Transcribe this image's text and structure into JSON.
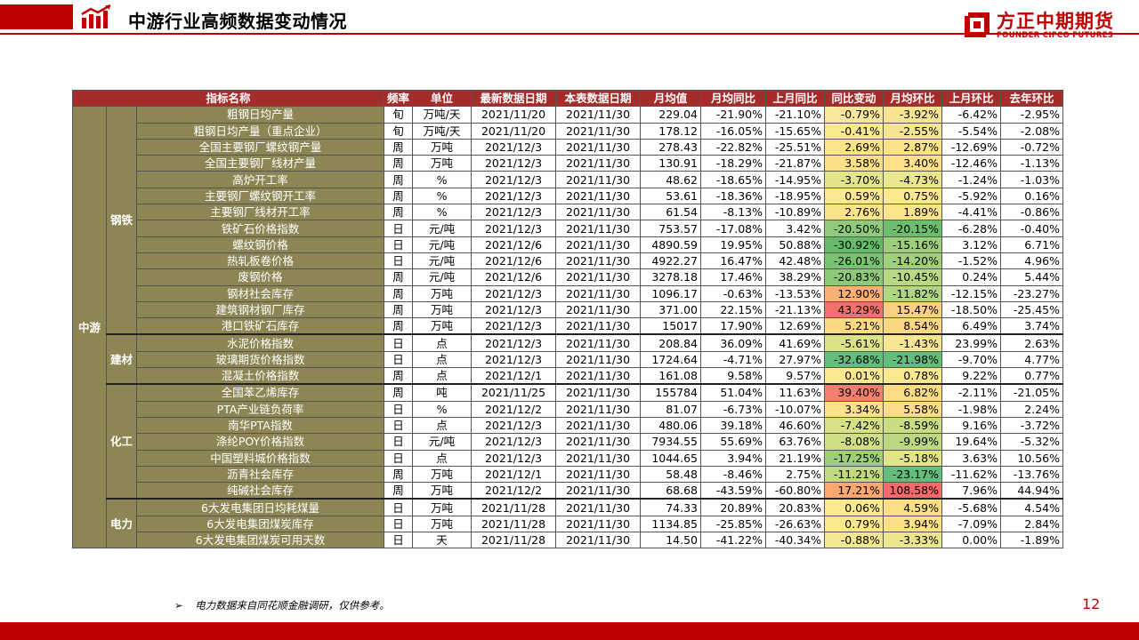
{
  "header": {
    "title": "中游行业高频数据变动情况",
    "logo_name": "方正中期期货",
    "logo_sub": "FOUNDER CIFCO FUTURES",
    "brand_color": "#c00000"
  },
  "table": {
    "columns": [
      "指标名称",
      "频率",
      "单位",
      "最新数据日期",
      "本表数据日期",
      "月均值",
      "月均同比",
      "上月同比",
      "同比变动",
      "月均环比",
      "上月环比",
      "去年环比"
    ],
    "category": "中游",
    "groups": [
      {
        "name": "钢铁",
        "rows": [
          {
            "name": "粗钢日均产量",
            "freq": "旬",
            "unit": "万吨/天",
            "latest": "2021/11/20",
            "table": "2021/11/30",
            "avg": "229.04",
            "yoy": "-21.90%",
            "last_yoy": "-21.10%",
            "yoy_chg": "-0.79%",
            "mom": "-3.92%",
            "last_mom": "-6.42%",
            "ly_mom": "-2.95%",
            "c1": "#f6e79a",
            "c2": "#f7e493"
          },
          {
            "name": "粗钢日均产量（重点企业）",
            "freq": "旬",
            "unit": "万吨/天",
            "latest": "2021/11/20",
            "table": "2021/11/30",
            "avg": "178.12",
            "yoy": "-16.05%",
            "last_yoy": "-15.65%",
            "yoy_chg": "-0.41%",
            "mom": "-2.55%",
            "last_mom": "-5.54%",
            "ly_mom": "-2.08%",
            "c1": "#f8e98f",
            "c2": "#f5e592"
          },
          {
            "name": "全国主要钢厂螺纹钢产量",
            "freq": "周",
            "unit": "万吨",
            "latest": "2021/12/3",
            "table": "2021/11/30",
            "avg": "278.43",
            "yoy": "-22.82%",
            "last_yoy": "-25.51%",
            "yoy_chg": "2.69%",
            "mom": "2.87%",
            "last_mom": "-12.69%",
            "ly_mom": "-0.72%",
            "c1": "#fbe48a",
            "c2": "#fde28a"
          },
          {
            "name": "全国主要钢厂线材产量",
            "freq": "周",
            "unit": "万吨",
            "latest": "2021/12/3",
            "table": "2021/11/30",
            "avg": "130.91",
            "yoy": "-18.29%",
            "last_yoy": "-21.87%",
            "yoy_chg": "3.58%",
            "mom": "3.40%",
            "last_mom": "-12.46%",
            "ly_mom": "-1.13%",
            "c1": "#fbe088",
            "c2": "#fde088"
          },
          {
            "name": "高炉开工率",
            "freq": "周",
            "unit": "%",
            "latest": "2021/12/3",
            "table": "2021/11/30",
            "avg": "48.62",
            "yoy": "-18.65%",
            "last_yoy": "-14.95%",
            "yoy_chg": "-3.70%",
            "mom": "-4.73%",
            "last_mom": "-1.24%",
            "ly_mom": "-1.03%",
            "c1": "#e6e48a",
            "c2": "#eae68e"
          },
          {
            "name": "主要钢厂螺纹钢开工率",
            "freq": "周",
            "unit": "%",
            "latest": "2021/12/3",
            "table": "2021/11/30",
            "avg": "53.61",
            "yoy": "-18.36%",
            "last_yoy": "-18.95%",
            "yoy_chg": "0.59%",
            "mom": "0.75%",
            "last_mom": "-5.92%",
            "ly_mom": "0.16%",
            "c1": "#fae790",
            "c2": "#fbe78e"
          },
          {
            "name": "主要钢厂线材开工率",
            "freq": "周",
            "unit": "%",
            "latest": "2021/12/3",
            "table": "2021/11/30",
            "avg": "61.54",
            "yoy": "-8.13%",
            "last_yoy": "-10.89%",
            "yoy_chg": "2.76%",
            "mom": "1.89%",
            "last_mom": "-4.41%",
            "ly_mom": "-0.86%",
            "c1": "#fbe38a",
            "c2": "#fce48c"
          },
          {
            "name": "铁矿石价格指数",
            "freq": "日",
            "unit": "元/吨",
            "latest": "2021/12/3",
            "table": "2021/11/30",
            "avg": "753.57",
            "yoy": "-17.08%",
            "last_yoy": "3.42%",
            "yoy_chg": "-20.50%",
            "mom": "-20.15%",
            "last_mom": "-6.28%",
            "ly_mom": "-0.40%",
            "c1": "#8fca7c",
            "c2": "#6cbe6e"
          },
          {
            "name": "螺纹钢价格",
            "freq": "日",
            "unit": "元/吨",
            "latest": "2021/12/6",
            "table": "2021/11/30",
            "avg": "4890.59",
            "yoy": "19.95%",
            "last_yoy": "50.88%",
            "yoy_chg": "-30.92%",
            "mom": "-15.16%",
            "last_mom": "3.12%",
            "ly_mom": "6.71%",
            "c1": "#66bb6a",
            "c2": "#9cce7c"
          },
          {
            "name": "热轧板卷价格",
            "freq": "日",
            "unit": "元/吨",
            "latest": "2021/12/6",
            "table": "2021/11/30",
            "avg": "4922.27",
            "yoy": "16.47%",
            "last_yoy": "42.48%",
            "yoy_chg": "-26.01%",
            "mom": "-14.20%",
            "last_mom": "-1.52%",
            "ly_mom": "4.96%",
            "c1": "#78c271",
            "c2": "#a1d07c"
          },
          {
            "name": "废钢价格",
            "freq": "周",
            "unit": "元/吨",
            "latest": "2021/12/6",
            "table": "2021/11/30",
            "avg": "3278.18",
            "yoy": "17.46%",
            "last_yoy": "38.29%",
            "yoy_chg": "-20.83%",
            "mom": "-10.45%",
            "last_mom": "0.24%",
            "ly_mom": "5.44%",
            "c1": "#8ec97a",
            "c2": "#b8d882"
          },
          {
            "name": "钢材社会库存",
            "freq": "周",
            "unit": "万吨",
            "latest": "2021/12/3",
            "table": "2021/11/30",
            "avg": "1096.17",
            "yoy": "-0.63%",
            "last_yoy": "-13.53%",
            "yoy_chg": "12.90%",
            "mom": "-11.82%",
            "last_mom": "-12.15%",
            "ly_mom": "-23.27%",
            "c1": "#f9b071",
            "c2": "#b0d680"
          },
          {
            "name": "建筑钢材钢厂库存",
            "freq": "周",
            "unit": "万吨",
            "latest": "2021/12/3",
            "table": "2021/11/30",
            "avg": "371.00",
            "yoy": "22.15%",
            "last_yoy": "-21.13%",
            "yoy_chg": "43.29%",
            "mom": "15.47%",
            "last_mom": "-18.50%",
            "ly_mom": "-25.45%",
            "c1": "#f4716b",
            "c2": "#fbcf80"
          },
          {
            "name": "港口铁矿石库存",
            "freq": "周",
            "unit": "万吨",
            "latest": "2021/12/3",
            "table": "2021/11/30",
            "avg": "15017",
            "yoy": "17.90%",
            "last_yoy": "12.69%",
            "yoy_chg": "5.21%",
            "mom": "8.54%",
            "last_mom": "6.49%",
            "ly_mom": "3.74%",
            "c1": "#fcd983",
            "c2": "#fcd782"
          }
        ]
      },
      {
        "name": "建材",
        "rows": [
          {
            "name": "水泥价格指数",
            "freq": "日",
            "unit": "点",
            "latest": "2021/12/3",
            "table": "2021/11/30",
            "avg": "208.84",
            "yoy": "36.09%",
            "last_yoy": "41.69%",
            "yoy_chg": "-5.61%",
            "mom": "-1.43%",
            "last_mom": "23.99%",
            "ly_mom": "2.63%",
            "c1": "#dde288",
            "c2": "#f5e692"
          },
          {
            "name": "玻璃期货价格指数",
            "freq": "日",
            "unit": "点",
            "latest": "2021/12/3",
            "table": "2021/11/30",
            "avg": "1724.64",
            "yoy": "-4.71%",
            "last_yoy": "27.97%",
            "yoy_chg": "-32.68%",
            "mom": "-21.98%",
            "last_mom": "-9.70%",
            "ly_mom": "4.77%",
            "c1": "#63be7b",
            "c2": "#63be7b"
          },
          {
            "name": "混凝土价格指数",
            "freq": "周",
            "unit": "点",
            "latest": "2021/12/1",
            "table": "2021/11/30",
            "avg": "161.08",
            "yoy": "9.58%",
            "last_yoy": "9.57%",
            "yoy_chg": "0.01%",
            "mom": "0.78%",
            "last_mom": "9.22%",
            "ly_mom": "0.77%",
            "c1": "#fbe890",
            "c2": "#fbe78e"
          }
        ]
      },
      {
        "name": "化工",
        "rows": [
          {
            "name": "全国苯乙烯库存",
            "freq": "周",
            "unit": "吨",
            "latest": "2021/11/25",
            "table": "2021/11/30",
            "avg": "155784",
            "yoy": "51.04%",
            "last_yoy": "11.63%",
            "yoy_chg": "39.40%",
            "mom": "6.82%",
            "last_mom": "-2.11%",
            "ly_mom": "-21.05%",
            "c1": "#f57f6e",
            "c2": "#fcdb84"
          },
          {
            "name": "PTA产业链负荷率",
            "freq": "日",
            "unit": "%",
            "latest": "2021/12/2",
            "table": "2021/11/30",
            "avg": "81.07",
            "yoy": "-6.73%",
            "last_yoy": "-10.07%",
            "yoy_chg": "3.34%",
            "mom": "5.58%",
            "last_mom": "-1.98%",
            "ly_mom": "2.24%",
            "c1": "#fbe189",
            "c2": "#fcdd86"
          },
          {
            "name": "南华PTA指数",
            "freq": "日",
            "unit": "点",
            "latest": "2021/12/3",
            "table": "2021/11/30",
            "avg": "480.06",
            "yoy": "39.18%",
            "last_yoy": "46.60%",
            "yoy_chg": "-7.42%",
            "mom": "-8.59%",
            "last_mom": "9.16%",
            "ly_mom": "-3.72%",
            "c1": "#d6e086",
            "c2": "#c8dc84"
          },
          {
            "name": "涤纶POY价格指数",
            "freq": "日",
            "unit": "元/吨",
            "latest": "2021/12/3",
            "table": "2021/11/30",
            "avg": "7934.55",
            "yoy": "55.69%",
            "last_yoy": "63.76%",
            "yoy_chg": "-8.08%",
            "mom": "-9.99%",
            "last_mom": "19.64%",
            "ly_mom": "-5.32%",
            "c1": "#d2de85",
            "c2": "#bcd982"
          },
          {
            "name": "中国塑料城价格指数",
            "freq": "日",
            "unit": "点",
            "latest": "2021/12/3",
            "table": "2021/11/30",
            "avg": "1044.65",
            "yoy": "3.94%",
            "last_yoy": "21.19%",
            "yoy_chg": "-17.25%",
            "mom": "-5.18%",
            "last_mom": "3.63%",
            "ly_mom": "10.56%",
            "c1": "#9ecd7c",
            "c2": "#e2e38a"
          },
          {
            "name": "沥青社会库存",
            "freq": "周",
            "unit": "万吨",
            "latest": "2021/12/1",
            "table": "2021/11/30",
            "avg": "58.48",
            "yoy": "-8.46%",
            "last_yoy": "2.75%",
            "yoy_chg": "-11.21%",
            "mom": "-23.17%",
            "last_mom": "-11.62%",
            "ly_mom": "-13.76%",
            "c1": "#bfd982",
            "c2": "#63be7b"
          },
          {
            "name": "纯碱社会库存",
            "freq": "周",
            "unit": "万吨",
            "latest": "2021/12/2",
            "table": "2021/11/30",
            "avg": "68.68",
            "yoy": "-43.59%",
            "last_yoy": "-60.80%",
            "yoy_chg": "17.21%",
            "mom": "108.58%",
            "last_mom": "7.96%",
            "ly_mom": "44.94%",
            "c1": "#f9a66f",
            "c2": "#f8696b"
          }
        ]
      },
      {
        "name": "电力",
        "rows": [
          {
            "name": "6大发电集团日均耗煤量",
            "freq": "日",
            "unit": "万吨",
            "latest": "2021/11/28",
            "table": "2021/11/30",
            "avg": "74.33",
            "yoy": "20.89%",
            "last_yoy": "20.83%",
            "yoy_chg": "0.06%",
            "mom": "4.59%",
            "last_mom": "-5.68%",
            "ly_mom": "4.54%",
            "c1": "#fbe88f",
            "c2": "#fcde87"
          },
          {
            "name": "6大发电集团煤炭库存",
            "freq": "日",
            "unit": "万吨",
            "latest": "2021/11/28",
            "table": "2021/11/30",
            "avg": "1134.85",
            "yoy": "-25.85%",
            "last_yoy": "-26.63%",
            "yoy_chg": "0.79%",
            "mom": "3.94%",
            "last_mom": "-7.09%",
            "ly_mom": "2.84%",
            "c1": "#fbe78e",
            "c2": "#fce088"
          },
          {
            "name": "6大发电集团煤炭可用天数",
            "freq": "日",
            "unit": "天",
            "latest": "2021/11/28",
            "table": "2021/11/30",
            "avg": "14.50",
            "yoy": "-41.22%",
            "last_yoy": "-40.34%",
            "yoy_chg": "-0.88%",
            "mom": "-3.33%",
            "last_mom": "0.00%",
            "ly_mom": "-1.89%",
            "c1": "#f4e791",
            "c2": "#ebe68e"
          }
        ]
      }
    ]
  },
  "footer": {
    "note": "电力数据来自同花顺金融调研，仅供参考。",
    "page_number": "12"
  }
}
